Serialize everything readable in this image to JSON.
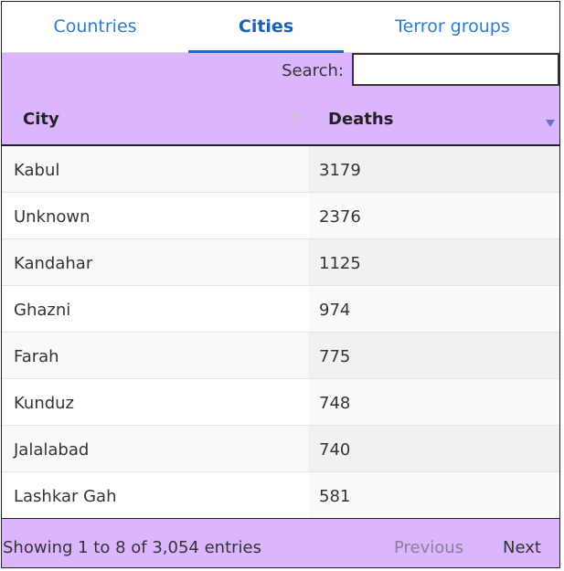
{
  "tabs": [
    {
      "label": "Countries",
      "active": false
    },
    {
      "label": "Cities",
      "active": true
    },
    {
      "label": "Terror groups",
      "active": false
    }
  ],
  "search": {
    "label": "Search:",
    "value": "",
    "placeholder": ""
  },
  "table": {
    "columns": [
      {
        "label": "City",
        "sort": "none"
      },
      {
        "label": "Deaths",
        "sort": "descending"
      }
    ],
    "rows": [
      {
        "city": "Kabul",
        "deaths": "3179"
      },
      {
        "city": "Unknown",
        "deaths": "2376"
      },
      {
        "city": "Kandahar",
        "deaths": "1125"
      },
      {
        "city": "Ghazni",
        "deaths": "974"
      },
      {
        "city": "Farah",
        "deaths": "775"
      },
      {
        "city": "Kunduz",
        "deaths": "748"
      },
      {
        "city": "Jalalabad",
        "deaths": "740"
      },
      {
        "city": "Lashkar Gah",
        "deaths": "581"
      }
    ]
  },
  "footer": {
    "info": "Showing 1 to 8 of 3,054 entries",
    "previous_label": "Previous",
    "next_label": "Next"
  },
  "colors": {
    "accent": "#1e6ad3",
    "header_bg": "#dcb5ff",
    "tab_text": "#2f7bd0"
  },
  "icons": {
    "sort_both": "sort-both-icon",
    "sort_desc": "sort-desc-icon"
  }
}
